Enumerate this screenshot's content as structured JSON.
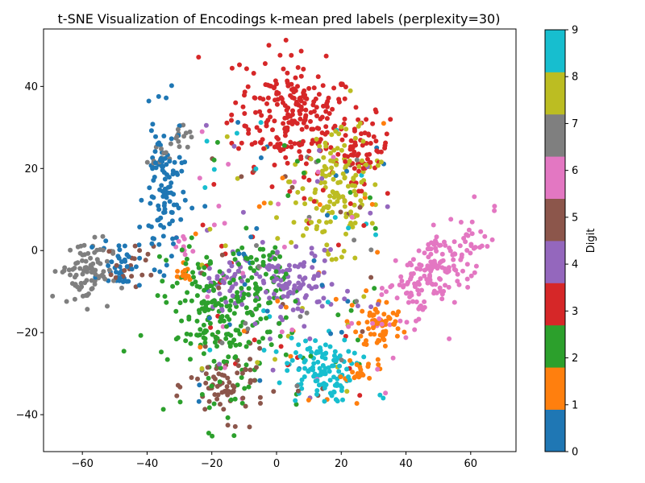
{
  "chart_data": {
    "type": "scatter",
    "title": "t-SNE Visualization of Encodings k-mean pred labels (perplexity=30)",
    "xlabel": "",
    "ylabel": "",
    "xlim": [
      -72,
      74
    ],
    "ylim": [
      -49,
      54
    ],
    "x_ticks": [
      -60,
      -40,
      -20,
      0,
      20,
      40,
      60
    ],
    "y_ticks": [
      -40,
      -20,
      0,
      20,
      40
    ],
    "grid": false,
    "colorbar": {
      "label": "Digit",
      "ticks": [
        0,
        1,
        2,
        3,
        4,
        5,
        6,
        7,
        8,
        9
      ],
      "colors": [
        "#1f77b4",
        "#ff7f0e",
        "#2ca02c",
        "#d62728",
        "#9467bd",
        "#8c564b",
        "#e377c2",
        "#7f7f7f",
        "#bcbd22",
        "#17becf"
      ]
    },
    "clusters": [
      {
        "label": 3,
        "cx": 5,
        "cy": 33,
        "sx": 9,
        "sy": 7,
        "rot": -0.2,
        "n": 230
      },
      {
        "label": 3,
        "cx": 27,
        "cy": 25,
        "sx": 4,
        "sy": 4,
        "rot": 0,
        "n": 60
      },
      {
        "label": 8,
        "cx": 18,
        "cy": 13,
        "sx": 7,
        "sy": 8,
        "rot": -0.3,
        "n": 150
      },
      {
        "label": 6,
        "cx": 49,
        "cy": -5,
        "sx": 10,
        "sy": 4,
        "rot": 0.6,
        "n": 190
      },
      {
        "label": 1,
        "cx": 32,
        "cy": -18,
        "sx": 3.5,
        "sy": 3,
        "rot": 0,
        "n": 65
      },
      {
        "label": 1,
        "cx": 26,
        "cy": -29,
        "sx": 2.5,
        "sy": 1.5,
        "rot": 0,
        "n": 20
      },
      {
        "label": 9,
        "cx": 13,
        "cy": -29,
        "sx": 5,
        "sy": 4,
        "rot": 0,
        "n": 110
      },
      {
        "label": 4,
        "cx": 5,
        "cy": -8,
        "sx": 7,
        "sy": 4,
        "rot": 0,
        "n": 100
      },
      {
        "label": 4,
        "cx": -15,
        "cy": -8,
        "sx": 3,
        "sy": 3,
        "rot": 0,
        "n": 35
      },
      {
        "label": 2,
        "cx": -18,
        "cy": -17,
        "sx": 8,
        "sy": 9,
        "rot": 0.3,
        "n": 200
      },
      {
        "label": 2,
        "cx": -5,
        "cy": -8,
        "sx": 4,
        "sy": 6,
        "rot": 0,
        "n": 60
      },
      {
        "label": 5,
        "cx": -15,
        "cy": -33,
        "sx": 6,
        "sy": 4,
        "rot": 0,
        "n": 70
      },
      {
        "label": 0,
        "cx": -35,
        "cy": 14,
        "sx": 3,
        "sy": 9,
        "rot": 0,
        "n": 110
      },
      {
        "label": 0,
        "cx": -48,
        "cy": -3,
        "sx": 3,
        "sy": 3,
        "rot": 0,
        "n": 40
      },
      {
        "label": 7,
        "cx": -59,
        "cy": -5,
        "sx": 4,
        "sy": 4,
        "rot": 0,
        "n": 90
      },
      {
        "label": 7,
        "cx": -30,
        "cy": 27,
        "sx": 2,
        "sy": 2,
        "rot": 0,
        "n": 15
      },
      {
        "label": 7,
        "cx": -37,
        "cy": 23,
        "sx": 1.5,
        "sy": 1.5,
        "rot": 0,
        "n": 10
      },
      {
        "label": 5,
        "cx": -44,
        "cy": -5,
        "sx": 3,
        "sy": 3,
        "rot": 0,
        "n": 20
      },
      {
        "label": 1,
        "cx": -29,
        "cy": -5,
        "sx": 1.5,
        "sy": 1.5,
        "rot": 0,
        "n": 12
      },
      {
        "label": 6,
        "cx": -30,
        "cy": 0,
        "sx": 2,
        "sy": 2,
        "rot": 0,
        "n": 10
      }
    ],
    "noise_points": 260
  }
}
